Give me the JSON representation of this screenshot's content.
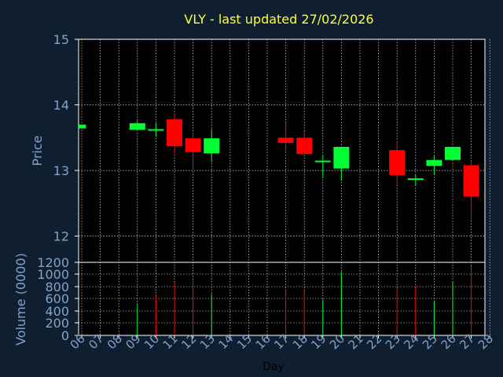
{
  "colors": {
    "background": "#0f1f30",
    "plot_bg": "#000000",
    "grid": "#ffffff",
    "up": "#00ff33",
    "down": "#ff0000",
    "text": "#7fa3cc",
    "title": "#ffff33"
  },
  "chart_data": [
    {
      "type": "candlestick",
      "title": "VLY - last updated 27/02/2026",
      "xlabel": "",
      "ylabel": "Price",
      "ylim": [
        11.6,
        15
      ],
      "yticks": [
        "12",
        "13",
        "14",
        "15"
      ],
      "grid": true,
      "days": [
        "06",
        "07",
        "08",
        "09",
        "10",
        "11",
        "12",
        "13",
        "14",
        "15",
        "16",
        "17",
        "18",
        "19",
        "20",
        "23",
        "24",
        "25",
        "26",
        "27",
        "28"
      ],
      "candles": [
        {
          "day": "06",
          "open": 13.64,
          "close": 13.7,
          "high": 13.7,
          "low": 13.64
        },
        {
          "day": "09",
          "open": 13.62,
          "close": 13.72,
          "high": 13.76,
          "low": 13.62
        },
        {
          "day": "10",
          "open": 13.63,
          "close": 13.63,
          "high": 13.72,
          "low": 13.52
        },
        {
          "day": "11",
          "open": 13.78,
          "close": 13.37,
          "high": 13.86,
          "low": 13.25
        },
        {
          "day": "12",
          "open": 13.49,
          "close": 13.28,
          "high": 13.57,
          "low": 13.01
        },
        {
          "day": "13",
          "open": 13.26,
          "close": 13.49,
          "high": 13.63,
          "low": 13.13
        },
        {
          "day": "17",
          "open": 13.5,
          "close": 13.42,
          "high": 13.72,
          "low": 13.27
        },
        {
          "day": "18",
          "open": 13.5,
          "close": 13.25,
          "high": 13.6,
          "low": 13.25
        },
        {
          "day": "19",
          "open": 13.14,
          "close": 13.15,
          "high": 13.23,
          "low": 12.88
        },
        {
          "day": "20",
          "open": 13.03,
          "close": 13.36,
          "high": 13.36,
          "low": 12.84
        },
        {
          "day": "23",
          "open": 13.31,
          "close": 12.93,
          "high": 13.45,
          "low": 12.77
        },
        {
          "day": "24",
          "open": 12.88,
          "close": 12.88,
          "high": 12.93,
          "low": 12.78
        },
        {
          "day": "25",
          "open": 13.07,
          "close": 13.16,
          "high": 13.22,
          "low": 12.94
        },
        {
          "day": "26",
          "open": 13.16,
          "close": 13.36,
          "high": 13.36,
          "low": 13.16
        },
        {
          "day": "27",
          "open": 13.08,
          "close": 12.6,
          "high": 13.13,
          "low": 12.23
        }
      ]
    },
    {
      "type": "bar",
      "xlabel": "Day",
      "ylabel": "Volume (0000)",
      "ylim": [
        0,
        1200
      ],
      "yticks": [
        "0",
        "200",
        "400",
        "600",
        "800",
        "1000",
        "1200"
      ],
      "grid": true,
      "categories": [
        "06",
        "07",
        "08",
        "09",
        "10",
        "11",
        "12",
        "13",
        "14",
        "15",
        "16",
        "17",
        "18",
        "19",
        "20",
        "21",
        "22",
        "23",
        "24",
        "25",
        "26",
        "27",
        "28"
      ],
      "bars": [
        {
          "day": "09",
          "value": 510,
          "dir": "up"
        },
        {
          "day": "10",
          "value": 650,
          "dir": "down"
        },
        {
          "day": "11",
          "value": 870,
          "dir": "down"
        },
        {
          "day": "12",
          "value": 910,
          "dir": "down"
        },
        {
          "day": "13",
          "value": 680,
          "dir": "up"
        },
        {
          "day": "17",
          "value": 740,
          "dir": "down"
        },
        {
          "day": "18",
          "value": 740,
          "dir": "down"
        },
        {
          "day": "19",
          "value": 590,
          "dir": "up"
        },
        {
          "day": "20",
          "value": 1040,
          "dir": "up"
        },
        {
          "day": "23",
          "value": 780,
          "dir": "down"
        },
        {
          "day": "24",
          "value": 790,
          "dir": "down"
        },
        {
          "day": "25",
          "value": 570,
          "dir": "up"
        },
        {
          "day": "26",
          "value": 880,
          "dir": "up"
        },
        {
          "day": "27",
          "value": 1140,
          "dir": "down"
        }
      ]
    }
  ]
}
